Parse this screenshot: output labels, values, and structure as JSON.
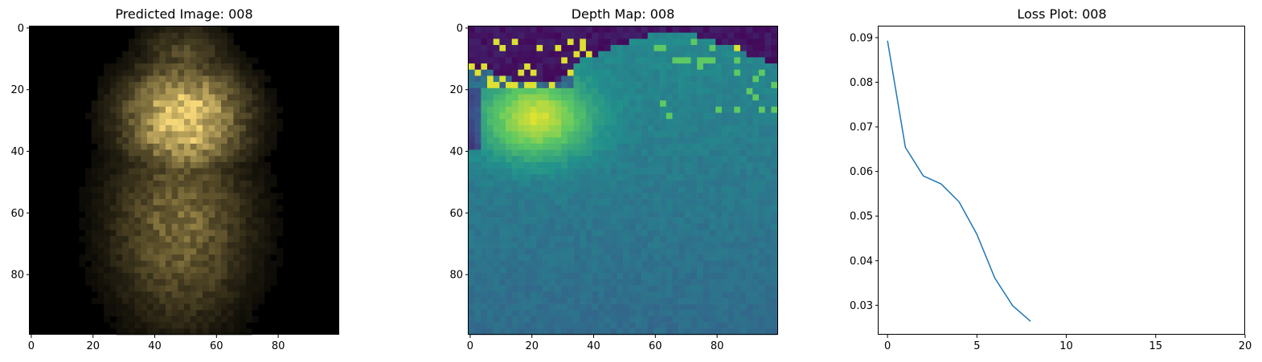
{
  "figure": {
    "panels": [
      {
        "title": "Predicted Image: 008"
      },
      {
        "title": "Depth Map: 008"
      },
      {
        "title": "Loss Plot: 008"
      }
    ]
  },
  "chart_data": [
    {
      "type": "heatmap",
      "title": "Predicted Image: 008",
      "description_values": "RGB image, dark background with a warm-yellow blob (upper) and a dimmer olive blob (lower), centred near x=50",
      "shape": [
        100,
        100
      ],
      "xlim": [
        0,
        99
      ],
      "ylim": [
        99,
        0
      ],
      "xticks": [
        0,
        20,
        40,
        60,
        80
      ],
      "yticks": [
        0,
        20,
        40,
        60,
        80
      ],
      "colors": {
        "background": "#000000",
        "highlight": "#e8d27a",
        "body": "#8f8a55"
      }
    },
    {
      "type": "heatmap",
      "title": "Depth Map: 008",
      "colormap": "viridis",
      "shape": [
        100,
        100
      ],
      "xlim": [
        0,
        99
      ],
      "ylim": [
        99,
        0
      ],
      "xticks": [
        0,
        20,
        40,
        60,
        80
      ],
      "yticks": [
        0,
        20,
        40,
        60,
        80
      ],
      "colors": {
        "low": "#440154",
        "mid": "#21918c",
        "high": "#fde725"
      }
    },
    {
      "type": "line",
      "title": "Loss Plot: 008",
      "x": [
        0,
        1,
        2,
        3,
        4,
        5,
        6,
        7,
        8
      ],
      "series": [
        {
          "values": [
            0.0893,
            0.0654,
            0.059,
            0.0572,
            0.0532,
            0.0459,
            0.0361,
            0.0299,
            0.0264
          ],
          "color": "#1f77b4"
        }
      ],
      "xlim": [
        -0.5,
        20
      ],
      "ylim": [
        0.0234,
        0.0925
      ],
      "xticks": [
        0,
        5,
        10,
        15,
        20
      ],
      "yticks": [
        "0.03",
        "0.04",
        "0.05",
        "0.06",
        "0.07",
        "0.08",
        "0.09"
      ]
    }
  ]
}
